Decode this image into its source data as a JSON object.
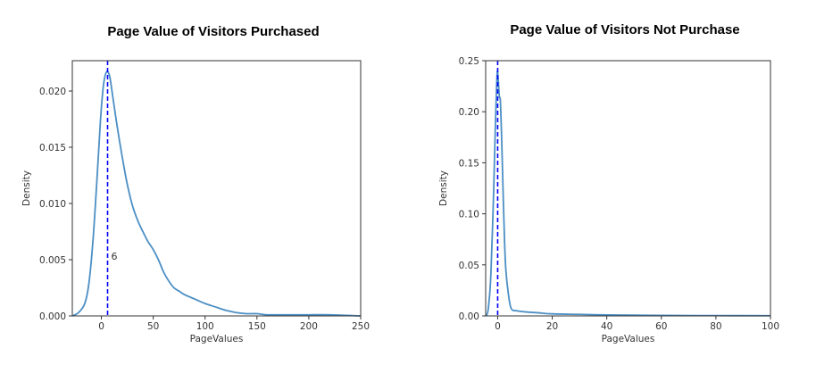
{
  "chart_data": [
    {
      "type": "line",
      "title": "Page Value of Visitors Purchased",
      "xlabel": "PageValues",
      "ylabel": "Density",
      "xlim": [
        -28,
        250
      ],
      "ylim": [
        0,
        0.0227
      ],
      "xticks": [
        0,
        50,
        100,
        150,
        200,
        250
      ],
      "xtick_labels": [
        "0",
        "50",
        "100",
        "150",
        "200",
        "250"
      ],
      "yticks": [
        0,
        0.005,
        0.01,
        0.015,
        0.02
      ],
      "ytick_labels": [
        "0.000",
        "0.005",
        "0.010",
        "0.015",
        "0.020"
      ],
      "series": [
        {
          "color": "#4c8fc4",
          "x": [
            -28,
            -22,
            -16,
            -12,
            -8,
            -4,
            -1,
            2,
            5,
            8,
            11,
            15,
            20,
            25,
            30,
            35,
            40,
            45,
            50,
            55,
            60,
            65,
            70,
            75,
            80,
            90,
            100,
            110,
            120,
            130,
            140,
            150,
            160,
            180,
            200,
            220,
            250
          ],
          "y": [
            0.0,
            0.0003,
            0.0011,
            0.0029,
            0.0068,
            0.0125,
            0.0172,
            0.0205,
            0.0217,
            0.0213,
            0.0195,
            0.017,
            0.0142,
            0.0117,
            0.0098,
            0.0085,
            0.0075,
            0.0066,
            0.0059,
            0.005,
            0.0039,
            0.0031,
            0.0025,
            0.0022,
            0.0019,
            0.0015,
            0.0011,
            0.0008,
            0.0005,
            0.0003,
            0.0002,
            0.0002,
            0.0001,
            0.0001,
            0.0001,
            0.0001,
            0.0
          ]
        }
      ],
      "vline": {
        "x": 6,
        "label": "6",
        "color": "#0000ff"
      }
    },
    {
      "type": "line",
      "title": "Page Value of Visitors Not Purchase",
      "xlabel": "PageValues",
      "ylabel": "Density",
      "xlim": [
        -4.4,
        100
      ],
      "ylim": [
        0,
        0.25
      ],
      "xticks": [
        0,
        20,
        40,
        60,
        80,
        100
      ],
      "xtick_labels": [
        "0",
        "20",
        "40",
        "60",
        "80",
        "100"
      ],
      "yticks": [
        0,
        0.05,
        0.1,
        0.15,
        0.2,
        0.25
      ],
      "ytick_labels": [
        "0.00",
        "0.05",
        "0.10",
        "0.15",
        "0.20",
        "0.25"
      ],
      "series": [
        {
          "color": "#4c8fc4",
          "x": [
            -4.4,
            -3.5,
            -2.5,
            -1.5,
            -0.8,
            -0.2,
            0.2,
            0.6,
            1.0,
            1.5,
            2.0,
            2.5,
            3.0,
            4.0,
            5.0,
            7.0,
            10.0,
            15.0,
            20.0,
            30.0,
            40.0,
            50.0,
            60.0,
            80.0,
            100.0
          ],
          "y": [
            0.0,
            0.006,
            0.04,
            0.12,
            0.19,
            0.237,
            0.232,
            0.215,
            0.21,
            0.17,
            0.12,
            0.075,
            0.045,
            0.02,
            0.007,
            0.005,
            0.004,
            0.003,
            0.002,
            0.0015,
            0.001,
            0.0007,
            0.0005,
            0.0003,
            0.0002
          ]
        }
      ],
      "vline": {
        "x": 0,
        "label": "",
        "color": "#0000ff"
      }
    }
  ]
}
